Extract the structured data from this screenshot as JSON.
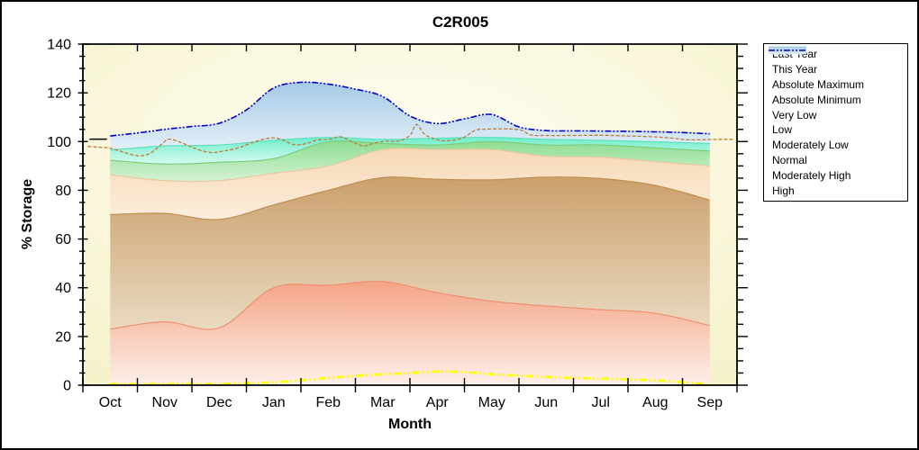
{
  "chart_data": {
    "type": "area",
    "title": "C2R005",
    "xlabel": "Month",
    "ylabel": "% Storage",
    "x_categories": [
      "Oct",
      "Nov",
      "Dec",
      "Jan",
      "Feb",
      "Mar",
      "Apr",
      "May",
      "Jun",
      "Jul",
      "Aug",
      "Sep"
    ],
    "ylim": [
      0,
      140
    ],
    "y_major_ticks": [
      0,
      20,
      40,
      60,
      80,
      100,
      120,
      140
    ],
    "y_minor_step": 5,
    "grid": "off",
    "legend_position": "outside-top-right",
    "bands_stack": [
      {
        "key": "very_low",
        "name": "Very Low",
        "top": [
          23,
          26,
          23.5,
          40,
          41,
          42.5,
          38,
          34.5,
          32.5,
          31,
          29.5,
          24.5
        ]
      },
      {
        "key": "low",
        "name": "Low",
        "top": [
          70,
          70.5,
          68,
          74,
          80,
          85.2,
          84.5,
          84.3,
          85.4,
          84.8,
          82,
          76
        ]
      },
      {
        "key": "moderately_low",
        "name": "Moderately Low",
        "top": [
          86.4,
          84,
          84,
          87,
          90,
          96.7,
          96.7,
          96.7,
          94,
          93.6,
          91.7,
          90
        ]
      },
      {
        "key": "normal",
        "name": "Normal",
        "top": [
          92.3,
          90.8,
          91.5,
          93,
          99.9,
          99.2,
          98.6,
          100,
          98.6,
          98.6,
          97.4,
          96.1
        ]
      },
      {
        "key": "moderately_high",
        "name": "Moderately High",
        "top": [
          96.5,
          98.2,
          98.6,
          100.5,
          101.7,
          100.9,
          101.4,
          101.7,
          100.9,
          100.5,
          99.9,
          99.2
        ]
      },
      {
        "key": "high",
        "name": "High",
        "top": "absolute_maximum"
      }
    ],
    "lines": {
      "absolute_maximum": {
        "name": "Absolute Maximum",
        "x_start_month": 0,
        "x_step": 0.5,
        "values": [
          102.3,
          103.5,
          105,
          106.2,
          107.5,
          113,
          122,
          124.3,
          123.6,
          121.5,
          118.5,
          110.5,
          107.4,
          109.3,
          111.1,
          106,
          104.5,
          104.4,
          104.3,
          104.2,
          104,
          103.7,
          103.2
        ]
      },
      "absolute_minimum": {
        "name": "Absolute Minimum",
        "x_start_month": 0,
        "x_step": 0.5,
        "values": [
          0.5,
          0.5,
          0.5,
          0.5,
          0.5,
          0.8,
          1.2,
          2,
          3,
          3.8,
          4.5,
          5,
          5.6,
          5.4,
          4.5,
          3.9,
          3.4,
          3,
          2.7,
          2.4,
          2,
          1.2,
          0.2
        ]
      },
      "last_year": {
        "name": "Last Year",
        "points": [
          [
            -0.41,
            98
          ],
          [
            -0.2,
            97.7
          ],
          [
            0,
            97.3
          ],
          [
            0.25,
            95.6
          ],
          [
            0.5,
            94.2
          ],
          [
            0.72,
            95
          ],
          [
            0.95,
            99
          ],
          [
            1.08,
            101
          ],
          [
            1.3,
            99.6
          ],
          [
            1.6,
            96.8
          ],
          [
            1.85,
            95.5
          ],
          [
            2.05,
            96
          ],
          [
            2.35,
            97.4
          ],
          [
            2.65,
            99.9
          ],
          [
            2.95,
            101.5
          ],
          [
            3.15,
            100.8
          ],
          [
            3.38,
            98.7
          ],
          [
            3.6,
            99.2
          ],
          [
            3.8,
            100.6
          ],
          [
            4.05,
            101
          ],
          [
            4.22,
            102
          ],
          [
            4.45,
            99.8
          ],
          [
            4.65,
            98.2
          ],
          [
            4.85,
            99.4
          ],
          [
            5.05,
            100.1
          ],
          [
            5.3,
            100.3
          ],
          [
            5.5,
            102.5
          ],
          [
            5.62,
            107
          ],
          [
            5.76,
            103.2
          ],
          [
            5.95,
            101.1
          ],
          [
            6.15,
            100.3
          ],
          [
            6.45,
            101.3
          ],
          [
            6.7,
            104.6
          ],
          [
            6.9,
            105.1
          ],
          [
            7.3,
            105.2
          ],
          [
            7.55,
            104.6
          ],
          [
            7.72,
            102.7
          ],
          [
            8,
            102.5
          ],
          [
            8.5,
            102.5
          ],
          [
            9,
            102.6
          ],
          [
            9.5,
            102.3
          ],
          [
            10,
            101.9
          ],
          [
            10.35,
            101.3
          ],
          [
            10.6,
            100.7
          ],
          [
            10.9,
            100.8
          ],
          [
            11.15,
            100.9
          ],
          [
            11.42,
            100.9
          ]
        ]
      },
      "this_year": {
        "name": "This Year",
        "points": [
          [
            -0.38,
            101
          ],
          [
            -0.06,
            101
          ]
        ]
      }
    }
  },
  "legend": {
    "items": [
      {
        "key": "last_year",
        "label": "Last Year",
        "swatch": "line",
        "dash": "4 2",
        "width": 1.3
      },
      {
        "key": "this_year",
        "label": "This Year",
        "swatch": "line",
        "dash": "",
        "width": 1.3
      },
      {
        "key": "absolute_maximum",
        "label": "Absolute Maximum",
        "swatch": "line",
        "dash": "7 2 2 2 2 2",
        "width": 1.6
      },
      {
        "key": "absolute_minimum",
        "label": "Absolute Minimum",
        "swatch": "line",
        "dash": "8 3 2 3 2 3",
        "width": 2.8
      },
      {
        "key": "very_low",
        "label": "Very Low",
        "swatch": "band"
      },
      {
        "key": "low",
        "label": "Low",
        "swatch": "band"
      },
      {
        "key": "moderately_low",
        "label": "Moderately Low",
        "swatch": "band"
      },
      {
        "key": "normal",
        "label": "Normal",
        "swatch": "band"
      },
      {
        "key": "moderately_high",
        "label": "Moderately High",
        "swatch": "band"
      },
      {
        "key": "high",
        "label": "High",
        "swatch": "band",
        "line_dash": "7 2 2 2 2 2"
      }
    ]
  },
  "colors": {
    "figure_border": "#000000",
    "plot_bg_center": "#FFFEF4",
    "plot_bg_edge": "#F5F1C8",
    "axis": "#000000",
    "lines": {
      "last_year": "#C07B3A",
      "this_year": "#000000",
      "absolute_maximum": "#0000CC",
      "absolute_minimum": "#FFFF00"
    },
    "bands": {
      "very_low": {
        "top": "#F5A486",
        "bottom": "#FDF0EA",
        "edge": "#EE9070"
      },
      "low": {
        "top": "#CBA06C",
        "bottom": "#EADAC2",
        "edge": "#BE8E50"
      },
      "moderately_low": {
        "top": "#F7D8B6",
        "bottom": "#FCEEDC",
        "edge": "#E9C8A0"
      },
      "normal": {
        "top": "#8CDC90",
        "bottom": "#D6F3D4",
        "edge": "#7CCC7C"
      },
      "moderately_high": {
        "top": "#6FEECB",
        "bottom": "#D8FAF0",
        "edge": "#5EE0BC"
      },
      "high": {
        "top": "#A6C9E6",
        "bottom": "#E3F0F8",
        "edge": "#0000CC"
      }
    }
  }
}
